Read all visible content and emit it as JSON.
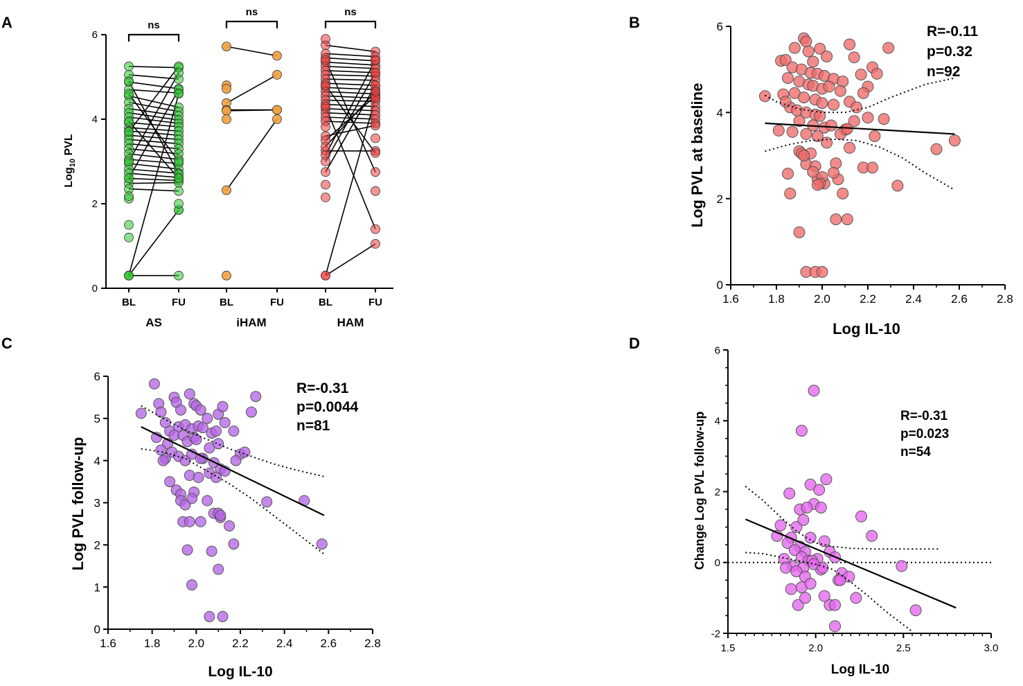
{
  "panels": {
    "A": {
      "label": "A"
    },
    "B": {
      "label": "B"
    },
    "C": {
      "label": "C"
    },
    "D": {
      "label": "D"
    }
  },
  "colors": {
    "AS": "#2fc52f",
    "iHAM": "#f0a040",
    "HAM": "#ec3c3c",
    "B": "#ef6a6a",
    "C": "#b565e6",
    "D": "#e466ee"
  },
  "chart_data": [
    {
      "id": "A",
      "type": "scatter",
      "subtype": "paired before-after",
      "title": "",
      "ylabel_prefix": "Log",
      "ylabel_sub": "10",
      "ylabel_suffix": " PVL",
      "xlabel": "",
      "ylim": [
        0,
        6
      ],
      "yticks": [
        0,
        2,
        4,
        6
      ],
      "timepoints": [
        "BL",
        "FU"
      ],
      "groups": [
        {
          "name": "AS",
          "sig": "ns",
          "unpaired_bl": [
            2.12,
            2.18,
            1.5,
            1.2
          ],
          "unpaired_fu": [
            1.85,
            2.0
          ],
          "pairs": [
            [
              5.25,
              5.22
            ],
            [
              5.05,
              4.95
            ],
            [
              4.88,
              4.72
            ],
            [
              4.7,
              4.62
            ],
            [
              4.55,
              4.28
            ],
            [
              4.4,
              4.18
            ],
            [
              4.25,
              4.08
            ],
            [
              4.15,
              3.98
            ],
            [
              4.05,
              3.9
            ],
            [
              3.92,
              3.82
            ],
            [
              3.8,
              3.72
            ],
            [
              3.72,
              3.62
            ],
            [
              3.62,
              3.52
            ],
            [
              3.52,
              3.42
            ],
            [
              3.42,
              3.3
            ],
            [
              3.3,
              3.18
            ],
            [
              3.18,
              3.05
            ],
            [
              3.05,
              2.95
            ],
            [
              2.95,
              2.82
            ],
            [
              2.82,
              2.72
            ],
            [
              2.72,
              2.62
            ],
            [
              2.6,
              2.55
            ],
            [
              2.48,
              2.5
            ],
            [
              2.35,
              2.3
            ],
            [
              3.7,
              5.25
            ],
            [
              3.0,
              5.1
            ],
            [
              2.6,
              4.7
            ],
            [
              4.9,
              2.7
            ],
            [
              4.6,
              3.0
            ],
            [
              3.95,
              2.6
            ],
            [
              0.3,
              4.6
            ],
            [
              0.3,
              1.85
            ],
            [
              0.3,
              0.3
            ]
          ]
        },
        {
          "name": "iHAM",
          "sig": "ns",
          "unpaired_bl": [
            4.8,
            4.72,
            4.0,
            0.3
          ],
          "unpaired_fu": [],
          "pairs": [
            [
              5.72,
              5.5
            ],
            [
              4.38,
              5.05
            ],
            [
              4.22,
              4.22
            ],
            [
              4.2,
              4.22
            ],
            [
              2.32,
              4.0
            ]
          ]
        },
        {
          "name": "HAM",
          "sig": "ns",
          "unpaired_bl": [
            5.9,
            3.82,
            2.45,
            2.15
          ],
          "unpaired_fu": [
            3.55,
            2.3
          ],
          "pairs": [
            [
              5.75,
              5.6
            ],
            [
              5.55,
              5.48
            ],
            [
              5.45,
              5.38
            ],
            [
              5.35,
              5.28
            ],
            [
              5.25,
              5.2
            ],
            [
              5.15,
              5.1
            ],
            [
              5.05,
              5.02
            ],
            [
              4.95,
              4.92
            ],
            [
              4.85,
              4.8
            ],
            [
              4.75,
              4.7
            ],
            [
              4.65,
              4.6
            ],
            [
              4.55,
              4.5
            ],
            [
              4.45,
              4.42
            ],
            [
              4.35,
              4.3
            ],
            [
              4.25,
              4.2
            ],
            [
              4.15,
              4.1
            ],
            [
              4.05,
              4.0
            ],
            [
              3.95,
              3.9
            ],
            [
              3.6,
              3.85
            ],
            [
              3.25,
              3.25
            ],
            [
              3.15,
              5.4
            ],
            [
              3.0,
              5.1
            ],
            [
              2.75,
              4.8
            ],
            [
              5.4,
              2.75
            ],
            [
              4.8,
              3.2
            ],
            [
              4.3,
              1.4
            ],
            [
              3.5,
              4.55
            ],
            [
              0.3,
              1.05
            ],
            [
              0.3,
              4.5
            ],
            [
              3.35,
              4.65
            ]
          ]
        }
      ]
    },
    {
      "id": "B",
      "type": "scatter",
      "title": "",
      "xlabel": "Log IL-10",
      "ylabel": "Log PVL at baseline",
      "xlim": [
        1.6,
        2.8
      ],
      "ylim": [
        0,
        6
      ],
      "xticks": [
        "1.6",
        "1.8",
        "2.0",
        "2.2",
        "2.4",
        "2.6",
        "2.8"
      ],
      "yticks": [
        "0",
        "2",
        "4",
        "6"
      ],
      "stats": [
        "R=-0.11",
        "p=0.32",
        "n=92"
      ],
      "fit": {
        "x": [
          1.75,
          2.58
        ],
        "y": [
          3.75,
          3.5
        ]
      },
      "ci_upper": {
        "x": [
          1.75,
          1.8,
          1.9,
          2.0,
          2.1,
          2.2,
          2.3,
          2.45,
          2.58
        ],
        "y": [
          4.4,
          4.25,
          4.08,
          4.0,
          4.0,
          4.12,
          4.35,
          4.65,
          4.8
        ]
      },
      "ci_lower": {
        "x": [
          1.75,
          1.85,
          1.95,
          2.05,
          2.15,
          2.25,
          2.35,
          2.45,
          2.58
        ],
        "y": [
          3.1,
          3.25,
          3.35,
          3.38,
          3.35,
          3.2,
          2.95,
          2.6,
          2.2
        ]
      },
      "x": [
        1.92,
        1.93,
        1.88,
        1.94,
        1.96,
        1.99,
        2.02,
        2.12,
        2.14,
        2.29,
        1.82,
        1.84,
        1.87,
        1.91,
        1.95,
        1.98,
        2.01,
        2.05,
        2.09,
        2.17,
        2.22,
        2.24,
        1.85,
        1.9,
        1.94,
        1.96,
        2.0,
        2.03,
        2.08,
        2.2,
        1.83,
        1.88,
        1.92,
        1.97,
        2.0,
        2.05,
        2.12,
        2.18,
        1.86,
        1.89,
        1.93,
        1.97,
        1.99,
        2.15,
        2.2,
        1.75,
        1.84,
        1.9,
        1.96,
        2.01,
        2.04,
        1.87,
        1.93,
        1.98,
        2.1,
        2.27,
        2.23,
        2.02,
        2.08,
        2.11,
        2.14,
        2.12,
        1.81,
        1.9,
        1.95,
        2.06,
        2.18,
        1.91,
        1.93,
        1.97,
        1.98,
        2.01,
        1.92,
        1.96,
        2.0,
        2.07,
        2.22,
        1.85,
        1.99,
        2.05,
        2.09,
        2.58,
        2.5,
        2.33,
        1.86,
        1.98,
        2.11,
        2.06,
        1.9,
        1.93,
        1.97,
        2.0
      ],
      "y": [
        5.72,
        5.65,
        5.5,
        5.42,
        5.18,
        5.48,
        5.3,
        5.58,
        5.28,
        5.5,
        5.2,
        5.22,
        5.05,
        5.0,
        4.92,
        4.9,
        4.85,
        4.78,
        4.72,
        4.88,
        5.05,
        4.9,
        4.8,
        4.72,
        4.65,
        4.62,
        4.55,
        4.6,
        4.5,
        4.6,
        4.42,
        4.45,
        4.35,
        4.3,
        4.22,
        4.18,
        4.25,
        4.45,
        4.12,
        4.05,
        4.0,
        3.95,
        3.92,
        4.12,
        3.88,
        4.38,
        4.25,
        3.8,
        3.7,
        3.65,
        3.7,
        3.55,
        3.5,
        3.45,
        3.6,
        3.85,
        3.45,
        3.3,
        3.5,
        3.62,
        3.8,
        3.18,
        3.58,
        3.1,
        3.05,
        2.82,
        2.72,
        3.05,
        2.8,
        2.75,
        2.45,
        2.35,
        3.0,
        2.62,
        2.5,
        2.45,
        2.72,
        2.58,
        2.35,
        2.6,
        2.12,
        3.35,
        3.15,
        2.3,
        2.12,
        2.32,
        1.52,
        1.52,
        1.22,
        0.3,
        0.3,
        0.3
      ]
    },
    {
      "id": "C",
      "type": "scatter",
      "title": "",
      "xlabel": "Log IL-10",
      "ylabel": "Log PVL follow-up",
      "xlim": [
        1.6,
        2.8
      ],
      "ylim": [
        0,
        6
      ],
      "xticks": [
        "1.6",
        "1.8",
        "2.0",
        "2.2",
        "2.4",
        "2.6",
        "2.8"
      ],
      "yticks": [
        "0",
        "1",
        "2",
        "3",
        "4",
        "5",
        "6"
      ],
      "stats": [
        "R=-0.31",
        "p=0.0044",
        "n=81"
      ],
      "fit": {
        "x": [
          1.75,
          2.58
        ],
        "y": [
          4.8,
          2.7
        ]
      },
      "ci_upper": {
        "x": [
          1.75,
          1.85,
          1.95,
          2.05,
          2.15,
          2.25,
          2.35,
          2.45,
          2.58
        ],
        "y": [
          5.3,
          5.0,
          4.72,
          4.5,
          4.28,
          4.1,
          3.92,
          3.78,
          3.62
        ]
      },
      "ci_lower": {
        "x": [
          1.75,
          1.85,
          1.95,
          2.05,
          2.15,
          2.25,
          2.35,
          2.45,
          2.58
        ],
        "y": [
          4.28,
          4.2,
          4.05,
          3.75,
          3.45,
          3.1,
          2.7,
          2.3,
          1.78
        ]
      },
      "x": [
        1.81,
        1.75,
        1.83,
        1.84,
        1.9,
        1.91,
        1.93,
        1.97,
        1.99,
        2.0,
        2.02,
        2.05,
        2.1,
        2.12,
        2.27,
        2.25,
        1.86,
        1.88,
        1.92,
        1.95,
        1.98,
        2.01,
        2.03,
        2.07,
        2.09,
        2.13,
        2.17,
        1.82,
        1.87,
        1.9,
        1.94,
        1.96,
        1.99,
        2.0,
        2.06,
        2.1,
        1.84,
        1.86,
        1.89,
        1.92,
        1.95,
        1.98,
        2.03,
        2.08,
        2.11,
        2.2,
        2.22,
        1.85,
        1.88,
        1.91,
        1.93,
        1.97,
        2.01,
        2.06,
        2.09,
        2.13,
        2.18,
        1.93,
        1.95,
        1.99,
        2.05,
        2.08,
        2.11,
        2.15,
        1.94,
        1.97,
        2.02,
        2.1,
        2.32,
        2.49,
        1.96,
        1.98,
        2.07,
        2.1,
        2.12,
        2.17,
        2.57,
        2.02,
        2.11,
        1.98,
        2.06
      ],
      "y": [
        5.82,
        5.12,
        5.35,
        5.15,
        5.5,
        5.38,
        5.2,
        5.58,
        5.35,
        5.3,
        5.2,
        5.0,
        5.1,
        5.28,
        5.52,
        5.15,
        4.9,
        4.7,
        4.8,
        4.85,
        4.75,
        4.82,
        4.78,
        4.65,
        4.7,
        4.9,
        4.7,
        4.55,
        4.4,
        4.6,
        4.6,
        4.45,
        4.55,
        4.5,
        4.3,
        4.4,
        4.25,
        4.05,
        4.2,
        4.1,
        4.0,
        4.15,
        4.05,
        3.95,
        3.8,
        4.15,
        4.2,
        4.0,
        3.5,
        3.3,
        3.2,
        3.65,
        3.6,
        3.7,
        3.6,
        3.75,
        4.0,
        3.05,
        2.95,
        3.25,
        3.05,
        2.75,
        2.65,
        2.45,
        2.55,
        2.55,
        2.55,
        2.75,
        3.02,
        3.05,
        1.88,
        1.05,
        1.85,
        1.42,
        0.3,
        2.02,
        2.02,
        4.05,
        2.7,
        3.1,
        0.3
      ]
    },
    {
      "id": "D",
      "type": "scatter",
      "title": "",
      "xlabel": "Log IL-10",
      "ylabel": "Change Log PVL follow-up",
      "xlim": [
        1.5,
        3.0
      ],
      "ylim": [
        -2,
        6
      ],
      "xticks": [
        "1.5",
        "2.0",
        "2.5",
        "3.0"
      ],
      "yticks": [
        "-2",
        "0",
        "2",
        "4",
        "6"
      ],
      "stats": [
        "R=-0.31",
        "p=0.023",
        "n=54"
      ],
      "fit": {
        "x": [
          1.6,
          2.8
        ],
        "y": [
          1.22,
          -1.28
        ]
      },
      "ci_upper": {
        "x": [
          1.6,
          1.7,
          1.8,
          1.9,
          2.0,
          2.1,
          2.2,
          2.35,
          2.5,
          2.7
        ],
        "y": [
          2.15,
          1.75,
          1.28,
          0.85,
          0.55,
          0.45,
          0.4,
          0.38,
          0.38,
          0.38
        ]
      },
      "ci_lower": {
        "x": [
          1.6,
          1.7,
          1.8,
          1.9,
          2.0,
          2.1,
          2.2,
          2.3,
          2.4,
          2.55
        ],
        "y": [
          0.28,
          0.25,
          0.15,
          0.05,
          -0.05,
          -0.2,
          -0.55,
          -0.95,
          -1.38,
          -1.95
        ]
      },
      "zero_line": 0,
      "x": [
        1.99,
        1.92,
        1.97,
        2.06,
        2.02,
        2.26,
        2.32,
        1.85,
        1.91,
        1.99,
        1.95,
        2.03,
        1.89,
        1.93,
        1.97,
        1.8,
        1.86,
        1.91,
        1.94,
        2.05,
        1.78,
        1.84,
        1.88,
        1.92,
        1.96,
        2.01,
        1.82,
        1.87,
        1.93,
        1.98,
        2.03,
        2.08,
        2.11,
        2.15,
        1.83,
        1.89,
        1.94,
        1.99,
        2.04,
        2.13,
        2.19,
        1.86,
        1.92,
        1.97,
        2.08,
        2.14,
        1.9,
        1.94,
        2.05,
        2.11,
        2.23,
        2.49,
        2.57,
        2.11
      ],
      "y": [
        4.85,
        3.72,
        2.2,
        2.35,
        2.05,
        1.3,
        0.75,
        1.95,
        1.5,
        1.65,
        1.55,
        1.55,
        1.0,
        1.2,
        0.7,
        1.05,
        0.7,
        0.45,
        0.3,
        0.6,
        0.75,
        0.55,
        0.35,
        0.15,
        0.05,
        0.1,
        0.1,
        -0.1,
        -0.15,
        0.05,
        -0.2,
        0.3,
        0.15,
        -0.3,
        -0.15,
        -0.25,
        -0.4,
        -0.05,
        -0.15,
        -0.5,
        -0.4,
        -0.75,
        -0.7,
        -0.6,
        -1.2,
        -0.5,
        -1.2,
        -1.0,
        -0.95,
        -1.2,
        -1.0,
        -0.1,
        -1.35,
        -1.8
      ]
    }
  ]
}
